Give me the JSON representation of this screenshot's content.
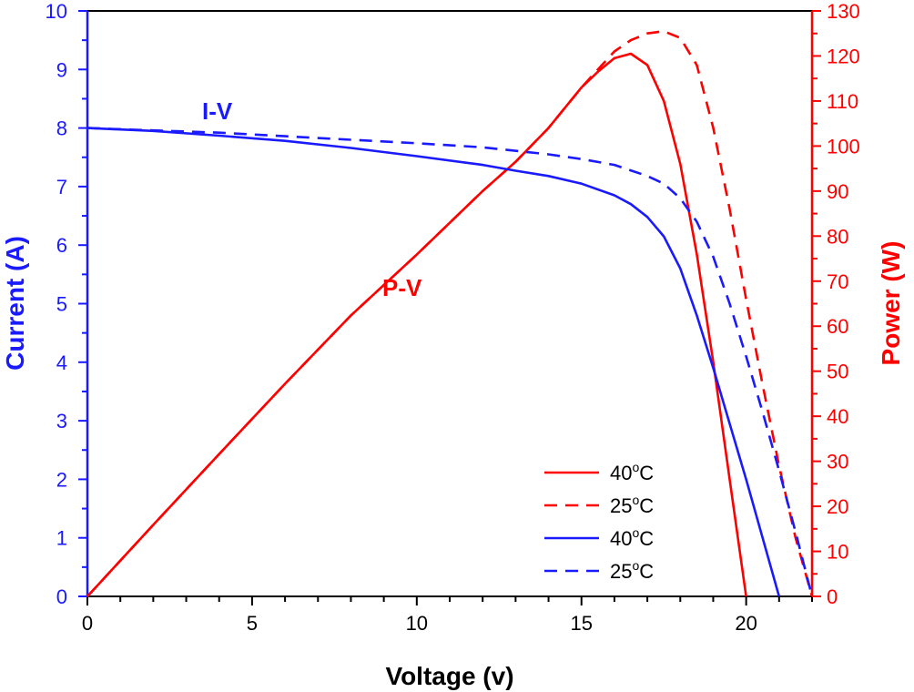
{
  "chart_data": {
    "type": "line",
    "xlabel": "Voltage (v)",
    "ylabel_left": "Current (A)",
    "ylabel_right": "Power (W)",
    "xlim": [
      0,
      22
    ],
    "ylim_left": [
      0,
      10
    ],
    "ylim_right": [
      0,
      130
    ],
    "x_ticks": [
      "0",
      "5",
      "10",
      "15",
      "20"
    ],
    "y_left_ticks": [
      "0",
      "1",
      "2",
      "3",
      "4",
      "5",
      "6",
      "7",
      "8",
      "9",
      "10"
    ],
    "y_right_ticks": [
      "0",
      "10",
      "20",
      "30",
      "40",
      "50",
      "60",
      "70",
      "80",
      "90",
      "100",
      "110",
      "120",
      "130"
    ],
    "annotations": {
      "iv": "I-V",
      "pv": "P-V"
    },
    "colors": {
      "current": "#1a1aff",
      "power": "#ff0000"
    },
    "legend_placement": "bottom-right",
    "legend": [
      {
        "label": "40",
        "sup": "o",
        "unit": "C",
        "color": "#ff0000",
        "dash": "solid"
      },
      {
        "label": "25",
        "sup": "o",
        "unit": "C",
        "color": "#ff0000",
        "dash": "dashed"
      },
      {
        "label": "40",
        "sup": "o",
        "unit": "C",
        "color": "#1a1aff",
        "dash": "solid"
      },
      {
        "label": "25",
        "sup": "o",
        "unit": "C",
        "color": "#1a1aff",
        "dash": "dashed"
      }
    ],
    "series": [
      {
        "name": "40°C",
        "quantity": "power",
        "axis": "right",
        "color": "#ff0000",
        "dash": "solid",
        "x": [
          0,
          2,
          4,
          6,
          8,
          10,
          12,
          13,
          14,
          15,
          15.5,
          16,
          16.5,
          17,
          17.5,
          18,
          18.5,
          19,
          19.5,
          20
        ],
        "y": [
          0,
          15.9,
          31.6,
          47.2,
          62.4,
          75.9,
          90.0,
          96.5,
          104.0,
          113.0,
          116.5,
          119.5,
          120.5,
          118.0,
          110.0,
          96.0,
          76.0,
          52.0,
          26.0,
          0
        ]
      },
      {
        "name": "25°C",
        "quantity": "power",
        "axis": "right",
        "color": "#ff0000",
        "dash": "dashed",
        "x": [
          0,
          2,
          4,
          6,
          8,
          10,
          12,
          13,
          14,
          15,
          16,
          16.5,
          17,
          17.5,
          18,
          18.5,
          19,
          19.5,
          20,
          20.5,
          21,
          21.5,
          22
        ],
        "y": [
          0,
          15.9,
          31.6,
          47.2,
          62.4,
          75.9,
          90.0,
          96.5,
          104.0,
          113.0,
          121.0,
          123.5,
          125.0,
          125.5,
          124.0,
          118.0,
          104.0,
          86.0,
          66.0,
          47.0,
          29.0,
          13.0,
          0
        ]
      },
      {
        "name": "40°C",
        "quantity": "current",
        "axis": "left",
        "color": "#1a1aff",
        "dash": "solid",
        "x": [
          0,
          2,
          4,
          6,
          8,
          10,
          12,
          13,
          14,
          15,
          16,
          16.5,
          17,
          17.5,
          18,
          18.5,
          19,
          19.5,
          20,
          20.5,
          21
        ],
        "y": [
          8.0,
          7.95,
          7.87,
          7.78,
          7.66,
          7.52,
          7.37,
          7.27,
          7.18,
          7.05,
          6.85,
          6.7,
          6.48,
          6.15,
          5.6,
          4.8,
          3.9,
          2.95,
          2.0,
          1.0,
          0
        ]
      },
      {
        "name": "25°C",
        "quantity": "current",
        "axis": "left",
        "color": "#1a1aff",
        "dash": "dashed",
        "x": [
          0,
          2,
          4,
          6,
          8,
          10,
          12,
          14,
          15,
          16,
          17,
          17.5,
          18,
          18.5,
          19,
          19.5,
          20,
          20.5,
          21,
          21.5,
          22
        ],
        "y": [
          8.0,
          7.96,
          7.92,
          7.86,
          7.8,
          7.74,
          7.67,
          7.55,
          7.47,
          7.37,
          7.18,
          7.05,
          6.8,
          6.4,
          5.8,
          5.0,
          4.1,
          3.15,
          2.15,
          1.1,
          0
        ]
      }
    ]
  }
}
